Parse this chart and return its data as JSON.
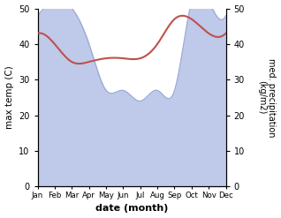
{
  "months": [
    "Jan",
    "Feb",
    "Mar",
    "Apr",
    "May",
    "Jun",
    "Jul",
    "Aug",
    "Sep",
    "Oct",
    "Nov",
    "Dec"
  ],
  "month_indices": [
    0,
    1,
    2,
    3,
    4,
    5,
    6,
    7,
    8,
    9,
    10,
    11
  ],
  "temperature": [
    43,
    40,
    35,
    35,
    36,
    36,
    36,
    40,
    47,
    47,
    43,
    43
  ],
  "precipitation": [
    48,
    52,
    50,
    40,
    27,
    27,
    24,
    27,
    27,
    52,
    52,
    48
  ],
  "temp_color": "#c0504d",
  "precip_fill_color": "#bfc9ea",
  "precip_line_color": "#9aaad4",
  "ylim_left": [
    0,
    50
  ],
  "ylim_right": [
    0,
    50
  ],
  "xlabel": "date (month)",
  "ylabel_left": "max temp (C)",
  "ylabel_right": "med. precipitation\n(kg/m2)",
  "temp_linewidth": 1.5,
  "figsize": [
    3.18,
    2.47
  ],
  "dpi": 100
}
